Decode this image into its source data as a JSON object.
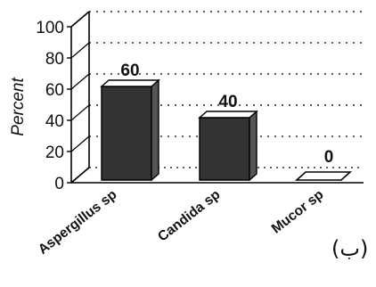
{
  "chart_data": {
    "type": "bar",
    "categories": [
      "Aspergillus sp",
      "Candida sp",
      "Mucor sp"
    ],
    "values": [
      60,
      40,
      0
    ],
    "data_labels": [
      "60",
      "40",
      "0"
    ],
    "title": "",
    "xlabel": "",
    "ylabel": "Percent",
    "ylim": [
      0,
      100
    ],
    "yticks": [
      "0",
      "20",
      "40",
      "60",
      "80",
      "100"
    ],
    "grid": true,
    "grid_style": "dotted",
    "three_d": true,
    "bar_color": "#333333",
    "corner_label": "(ب)"
  }
}
